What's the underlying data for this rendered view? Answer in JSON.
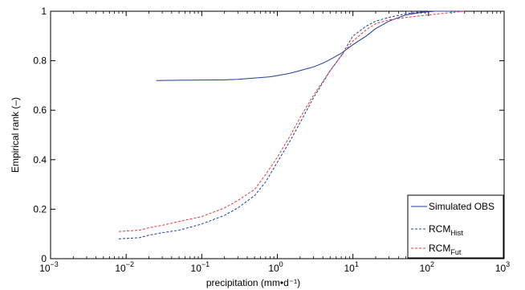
{
  "chart_data": {
    "type": "line",
    "title": "",
    "xlabel": "precipitation (mm•d⁻¹)",
    "ylabel": "Empirical rank (–)",
    "xscale": "log",
    "xlim": [
      0.001,
      1000
    ],
    "ylim": [
      0,
      1
    ],
    "grid": false,
    "legend_position": "bottom-right",
    "x_ticks": [
      {
        "value": 0.001,
        "base": "10",
        "exp": "−3"
      },
      {
        "value": 0.01,
        "base": "10",
        "exp": "−2"
      },
      {
        "value": 0.1,
        "base": "10",
        "exp": "−1"
      },
      {
        "value": 1,
        "base": "10",
        "exp": "0"
      },
      {
        "value": 10,
        "base": "10",
        "exp": "1"
      },
      {
        "value": 100,
        "base": "10",
        "exp": "2"
      },
      {
        "value": 1000,
        "base": "10",
        "exp": "3"
      }
    ],
    "y_ticks": [
      {
        "value": 0,
        "label": "0"
      },
      {
        "value": 0.2,
        "label": "0.2"
      },
      {
        "value": 0.4,
        "label": "0.4"
      },
      {
        "value": 0.6,
        "label": "0.6"
      },
      {
        "value": 0.8,
        "label": "0.8"
      },
      {
        "value": 1,
        "label": "1"
      }
    ],
    "series": [
      {
        "name": "Simulated OBS",
        "legend_main": "Simulated OBS",
        "legend_sub": "",
        "color": "#1f3d99",
        "dash": "solid",
        "points": [
          [
            0.025,
            0.72
          ],
          [
            0.05,
            0.721
          ],
          [
            0.1,
            0.722
          ],
          [
            0.2,
            0.723
          ],
          [
            0.3,
            0.725
          ],
          [
            0.5,
            0.73
          ],
          [
            0.8,
            0.735
          ],
          [
            1.0,
            0.74
          ],
          [
            1.5,
            0.75
          ],
          [
            2.0,
            0.76
          ],
          [
            3.0,
            0.775
          ],
          [
            4.0,
            0.79
          ],
          [
            5.0,
            0.805
          ],
          [
            7.0,
            0.83
          ],
          [
            10,
            0.865
          ],
          [
            15,
            0.9
          ],
          [
            20,
            0.93
          ],
          [
            30,
            0.96
          ],
          [
            50,
            0.985
          ],
          [
            80,
            0.995
          ],
          [
            120,
            1.0
          ],
          [
            300,
            1.0
          ]
        ]
      },
      {
        "name": "RCMHist",
        "legend_main": "RCM",
        "legend_sub": "Hist",
        "color": "#1f3d99",
        "dash": "dashed",
        "points": [
          [
            0.008,
            0.08
          ],
          [
            0.015,
            0.085
          ],
          [
            0.02,
            0.095
          ],
          [
            0.03,
            0.105
          ],
          [
            0.05,
            0.115
          ],
          [
            0.1,
            0.14
          ],
          [
            0.2,
            0.175
          ],
          [
            0.3,
            0.205
          ],
          [
            0.5,
            0.255
          ],
          [
            0.7,
            0.31
          ],
          [
            1.0,
            0.39
          ],
          [
            1.5,
            0.48
          ],
          [
            2.0,
            0.55
          ],
          [
            3.0,
            0.65
          ],
          [
            5.0,
            0.76
          ],
          [
            7.0,
            0.82
          ],
          [
            10,
            0.9
          ],
          [
            15,
            0.94
          ],
          [
            20,
            0.96
          ],
          [
            30,
            0.975
          ],
          [
            50,
            0.99
          ],
          [
            100,
            1.0
          ],
          [
            300,
            1.0
          ]
        ]
      },
      {
        "name": "RCMFut",
        "legend_main": "RCM",
        "legend_sub": "Fut",
        "color": "#e0393b",
        "dash": "dashed",
        "points": [
          [
            0.008,
            0.11
          ],
          [
            0.015,
            0.115
          ],
          [
            0.02,
            0.125
          ],
          [
            0.03,
            0.135
          ],
          [
            0.05,
            0.15
          ],
          [
            0.1,
            0.17
          ],
          [
            0.2,
            0.205
          ],
          [
            0.3,
            0.235
          ],
          [
            0.5,
            0.28
          ],
          [
            0.7,
            0.34
          ],
          [
            1.0,
            0.41
          ],
          [
            1.5,
            0.5
          ],
          [
            2.0,
            0.57
          ],
          [
            3.0,
            0.66
          ],
          [
            5.0,
            0.76
          ],
          [
            7.0,
            0.82
          ],
          [
            10,
            0.88
          ],
          [
            15,
            0.925
          ],
          [
            20,
            0.95
          ],
          [
            30,
            0.965
          ],
          [
            50,
            0.975
          ],
          [
            100,
            0.985
          ],
          [
            200,
            0.995
          ],
          [
            300,
            1.0
          ]
        ]
      }
    ]
  }
}
